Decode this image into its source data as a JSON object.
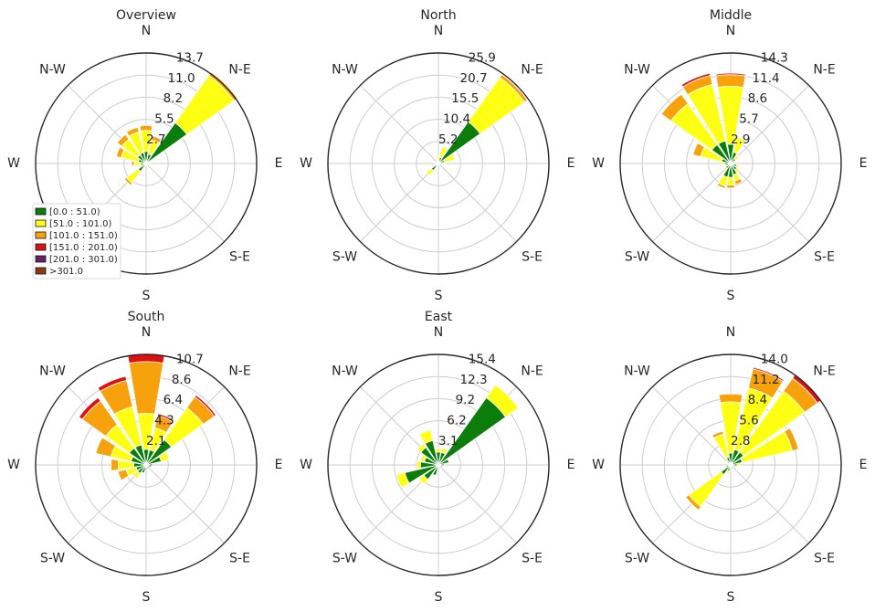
{
  "figure": {
    "direction_labels": [
      "N",
      "N-E",
      "E",
      "S-E",
      "S",
      "S-W",
      "W",
      "N-W"
    ]
  },
  "legend": {
    "entries": [
      {
        "label": "[0.0 : 51.0)",
        "color": "#0b7d0b"
      },
      {
        "label": "[51.0 : 101.0)",
        "color": "#ffff14"
      },
      {
        "label": "[101.0 : 151.0)",
        "color": "#f7a20d"
      },
      {
        "label": "[151.0 : 201.0)",
        "color": "#e01010"
      },
      {
        "label": "[201.0 : 301.0)",
        "color": "#6b1f6b"
      },
      {
        "label": ">301.0",
        "color": "#8a3b12"
      }
    ]
  },
  "chart_data": [
    {
      "type": "windrose",
      "title": "Overview",
      "rticks": [
        "2.7",
        "5.5",
        "8.2",
        "11.0",
        "13.7"
      ],
      "rmax": 13.7,
      "bars": [
        {
          "dir": 0,
          "stacks": [
            1.5,
            2.6,
            0.6,
            0.1
          ]
        },
        {
          "dir": 22.5,
          "stacks": [
            1.2,
            1.8,
            0.5
          ]
        },
        {
          "dir": 45,
          "stacks": [
            6.2,
            7.2,
            0.5
          ]
        },
        {
          "dir": 67.5,
          "stacks": [
            0.4,
            0.3
          ]
        },
        {
          "dir": 90,
          "stacks": [
            0.3,
            0.2
          ]
        },
        {
          "dir": 112.5,
          "stacks": [
            0.4,
            0.1
          ]
        },
        {
          "dir": 135,
          "stacks": [
            0.2
          ]
        },
        {
          "dir": 157.5,
          "stacks": [
            0.2
          ]
        },
        {
          "dir": 180,
          "stacks": [
            0.3
          ]
        },
        {
          "dir": 202.5,
          "stacks": [
            0.5
          ]
        },
        {
          "dir": 225,
          "stacks": [
            1.2,
            1.8,
            0.3
          ]
        },
        {
          "dir": 247.5,
          "stacks": [
            0.6,
            0.3
          ]
        },
        {
          "dir": 270,
          "stacks": [
            0.7,
            0.8,
            0.3
          ]
        },
        {
          "dir": 292.5,
          "stacks": [
            1.0,
            2.2,
            0.6
          ]
        },
        {
          "dir": 315,
          "stacks": [
            1.3,
            2.4,
            0.7
          ]
        },
        {
          "dir": 337.5,
          "stacks": [
            1.4,
            2.6,
            0.6,
            0.1
          ]
        }
      ]
    },
    {
      "type": "windrose",
      "title": "North",
      "rticks": [
        "5.2",
        "10.4",
        "15.5",
        "20.7",
        "25.9"
      ],
      "rmax": 25.9,
      "bars": [
        {
          "dir": 0,
          "stacks": [
            0.8,
            1.0
          ]
        },
        {
          "dir": 22.5,
          "stacks": [
            1.5,
            2.5
          ]
        },
        {
          "dir": 45,
          "stacks": [
            12.0,
            12.8,
            0.8
          ]
        },
        {
          "dir": 67.5,
          "stacks": [
            1.5,
            2.5
          ]
        },
        {
          "dir": 90,
          "stacks": [
            0.6,
            0.5
          ]
        },
        {
          "dir": 112.5,
          "stacks": [
            0.5
          ]
        },
        {
          "dir": 135,
          "stacks": [
            0.3
          ]
        },
        {
          "dir": 157.5,
          "stacks": [
            0.3
          ]
        },
        {
          "dir": 180,
          "stacks": [
            0.3
          ]
        },
        {
          "dir": 202.5,
          "stacks": [
            0.3
          ]
        },
        {
          "dir": 225,
          "stacks": [
            2.0,
            1.5
          ]
        },
        {
          "dir": 247.5,
          "stacks": [
            0.8,
            0.2
          ]
        },
        {
          "dir": 270,
          "stacks": [
            0.7
          ]
        },
        {
          "dir": 292.5,
          "stacks": [
            0.5
          ]
        },
        {
          "dir": 315,
          "stacks": [
            0.5
          ]
        },
        {
          "dir": 337.5,
          "stacks": [
            0.6,
            0.3
          ]
        }
      ]
    },
    {
      "type": "windrose",
      "title": "Middle",
      "rticks": [
        "2.9",
        "5.7",
        "8.6",
        "11.4",
        "14.3"
      ],
      "rmax": 14.3,
      "bars": [
        {
          "dir": 0,
          "stacks": [
            2.5,
            7.5,
            1.5,
            0.2
          ]
        },
        {
          "dir": 22.5,
          "stacks": [
            1.5,
            2.0
          ]
        },
        {
          "dir": 45,
          "stacks": [
            0.8,
            0.5
          ]
        },
        {
          "dir": 67.5,
          "stacks": [
            0.5
          ]
        },
        {
          "dir": 90,
          "stacks": [
            0.4
          ]
        },
        {
          "dir": 112.5,
          "stacks": [
            0.8,
            0.3
          ]
        },
        {
          "dir": 135,
          "stacks": [
            1.0,
            0.4
          ]
        },
        {
          "dir": 157.5,
          "stacks": [
            1.5,
            0.8,
            0.5
          ]
        },
        {
          "dir": 180,
          "stacks": [
            1.8,
            1.0,
            0.4
          ]
        },
        {
          "dir": 202.5,
          "stacks": [
            1.8,
            1.2,
            0.3
          ]
        },
        {
          "dir": 225,
          "stacks": [
            0.8,
            0.3
          ]
        },
        {
          "dir": 247.5,
          "stacks": [
            0.6
          ]
        },
        {
          "dir": 270,
          "stacks": [
            0.8,
            0.4
          ]
        },
        {
          "dir": 292.5,
          "stacks": [
            1.2,
            2.8,
            1.0
          ]
        },
        {
          "dir": 315,
          "stacks": [
            3.0,
            6.5,
            1.5
          ]
        },
        {
          "dir": 337.5,
          "stacks": [
            3.0,
            7.5,
            1.2,
            0.3
          ]
        }
      ]
    },
    {
      "type": "windrose",
      "title": "South",
      "rticks": [
        "2.1",
        "4.3",
        "6.4",
        "8.6",
        "10.7"
      ],
      "rmax": 10.7,
      "bars": [
        {
          "dir": 0,
          "stacks": [
            1.5,
            3.5,
            5.0,
            0.7
          ]
        },
        {
          "dir": 22.5,
          "stacks": [
            1.5,
            2.2,
            1.2,
            0.2
          ]
        },
        {
          "dir": 45,
          "stacks": [
            3.0,
            3.8,
            1.3,
            0.2
          ]
        },
        {
          "dir": 67.5,
          "stacks": [
            1.5,
            0.8
          ]
        },
        {
          "dir": 90,
          "stacks": [
            0.6
          ]
        },
        {
          "dir": 112.5,
          "stacks": [
            0.5
          ]
        },
        {
          "dir": 135,
          "stacks": [
            0.4
          ]
        },
        {
          "dir": 157.5,
          "stacks": [
            0.4
          ]
        },
        {
          "dir": 180,
          "stacks": [
            0.5
          ]
        },
        {
          "dir": 202.5,
          "stacks": [
            0.8
          ]
        },
        {
          "dir": 225,
          "stacks": [
            1.0,
            0.6
          ]
        },
        {
          "dir": 247.5,
          "stacks": [
            1.0,
            1.0,
            0.8
          ]
        },
        {
          "dir": 270,
          "stacks": [
            1.2,
            1.5,
            0.7
          ]
        },
        {
          "dir": 292.5,
          "stacks": [
            1.5,
            2.0,
            1.5
          ]
        },
        {
          "dir": 315,
          "stacks": [
            2.0,
            2.8,
            2.8,
            0.4
          ]
        },
        {
          "dir": 337.5,
          "stacks": [
            2.0,
            3.8,
            2.6,
            0.4
          ]
        }
      ]
    },
    {
      "type": "windrose",
      "title": "East",
      "rticks": [
        "3.1",
        "6.2",
        "9.2",
        "12.3",
        "15.4"
      ],
      "rmax": 15.4,
      "bars": [
        {
          "dir": 0,
          "stacks": [
            1.8,
            0.5
          ]
        },
        {
          "dir": 22.5,
          "stacks": [
            1.8,
            0.6
          ]
        },
        {
          "dir": 45,
          "stacks": [
            11.5,
            2.2
          ]
        },
        {
          "dir": 67.5,
          "stacks": [
            1.5
          ]
        },
        {
          "dir": 90,
          "stacks": [
            0.8
          ]
        },
        {
          "dir": 112.5,
          "stacks": [
            0.6
          ]
        },
        {
          "dir": 135,
          "stacks": [
            0.5
          ]
        },
        {
          "dir": 157.5,
          "stacks": [
            0.5
          ]
        },
        {
          "dir": 180,
          "stacks": [
            0.6
          ]
        },
        {
          "dir": 202.5,
          "stacks": [
            1.5
          ]
        },
        {
          "dir": 225,
          "stacks": [
            2.5,
            0.8
          ]
        },
        {
          "dir": 247.5,
          "stacks": [
            4.8,
            1.2
          ]
        },
        {
          "dir": 270,
          "stacks": [
            2.5,
            0.5
          ]
        },
        {
          "dir": 292.5,
          "stacks": [
            2.0,
            0.6
          ]
        },
        {
          "dir": 315,
          "stacks": [
            3.0,
            0.6
          ]
        },
        {
          "dir": 337.5,
          "stacks": [
            3.5,
            1.5
          ]
        }
      ]
    },
    {
      "type": "windrose",
      "title": "",
      "rticks": [
        "2.8",
        "5.6",
        "8.4",
        "11.2",
        "14.0"
      ],
      "rmax": 14.0,
      "bars": [
        {
          "dir": 0,
          "stacks": [
            1.5,
            6.5,
            1.0
          ]
        },
        {
          "dir": 22.5,
          "stacks": [
            2.0,
            8.0,
            2.5,
            0.2
          ]
        },
        {
          "dir": 45,
          "stacks": [
            2.0,
            9.5,
            2.0,
            0.6
          ]
        },
        {
          "dir": 67.5,
          "stacks": [
            1.5,
            6.5,
            0.8
          ]
        },
        {
          "dir": 90,
          "stacks": [
            0.8,
            0.3
          ]
        },
        {
          "dir": 112.5,
          "stacks": [
            0.5
          ]
        },
        {
          "dir": 135,
          "stacks": [
            0.4
          ]
        },
        {
          "dir": 157.5,
          "stacks": [
            0.5
          ]
        },
        {
          "dir": 180,
          "stacks": [
            0.5
          ]
        },
        {
          "dir": 202.5,
          "stacks": [
            0.8,
            0.3
          ]
        },
        {
          "dir": 225,
          "stacks": [
            1.5,
            5.0,
            0.5
          ]
        },
        {
          "dir": 247.5,
          "stacks": [
            0.6
          ]
        },
        {
          "dir": 270,
          "stacks": [
            0.3
          ]
        },
        {
          "dir": 292.5,
          "stacks": [
            0.4
          ]
        },
        {
          "dir": 315,
          "stacks": [
            0.5
          ]
        },
        {
          "dir": 337.5,
          "stacks": [
            1.0,
            3.0,
            0.4
          ]
        }
      ]
    }
  ]
}
